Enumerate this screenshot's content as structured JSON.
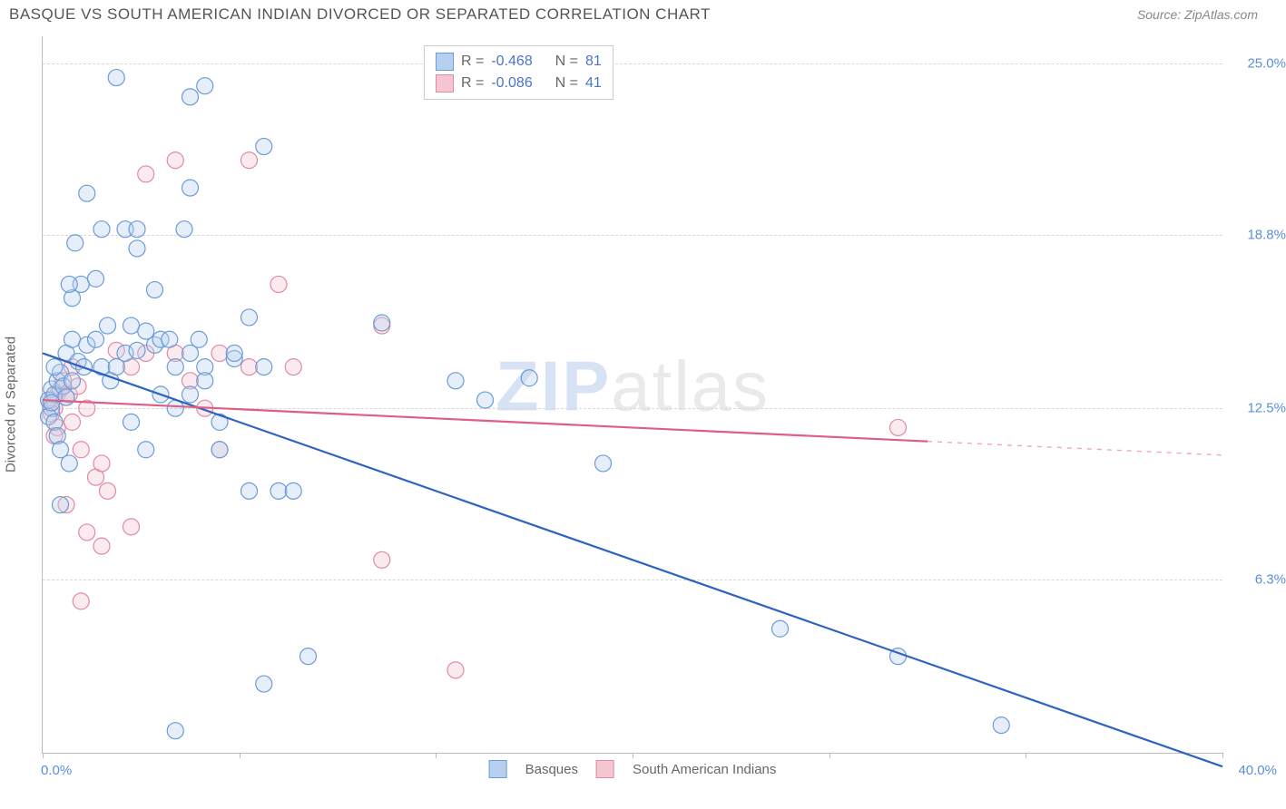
{
  "header": {
    "title": "BASQUE VS SOUTH AMERICAN INDIAN DIVORCED OR SEPARATED CORRELATION CHART",
    "source": "Source: ZipAtlas.com"
  },
  "watermark": {
    "part1": "ZIP",
    "part2": "atlas"
  },
  "chart": {
    "type": "scatter",
    "y_axis_title": "Divorced or Separated",
    "xlim": [
      0,
      40
    ],
    "ylim": [
      0,
      26
    ],
    "x_tick_positions": [
      0,
      6.67,
      13.33,
      20,
      26.67,
      33.33,
      40
    ],
    "x_tick_labels_shown": {
      "0": "0.0%",
      "40": "40.0%"
    },
    "y_grid_positions": [
      6.3,
      12.5,
      18.8,
      25.0
    ],
    "y_tick_labels": [
      "6.3%",
      "12.5%",
      "18.8%",
      "25.0%"
    ],
    "background_color": "#ffffff",
    "grid_color": "#d8d8d8",
    "axis_color": "#bbbbbb",
    "tick_label_color": "#5b8fd6",
    "marker_radius": 9,
    "marker_stroke_width": 1.2,
    "marker_fill_opacity": 0.35,
    "line_width": 2.2,
    "series": [
      {
        "name": "Basques",
        "label": "Basques",
        "fill": "#b8d0ef",
        "stroke": "#6b9bd8",
        "line_color": "#2e63c0",
        "R": "-0.468",
        "N": "81",
        "trend": {
          "x1": 0,
          "y1": 14.5,
          "x2": 40,
          "y2": -0.5,
          "solid_until_x": 40
        },
        "points": [
          [
            0.3,
            13.2
          ],
          [
            0.2,
            12.8
          ],
          [
            0.4,
            13.0
          ],
          [
            0.3,
            12.5
          ],
          [
            0.5,
            13.5
          ],
          [
            0.2,
            12.2
          ],
          [
            0.6,
            13.8
          ],
          [
            0.4,
            12.0
          ],
          [
            0.8,
            14.5
          ],
          [
            0.5,
            11.5
          ],
          [
            1.0,
            15.0
          ],
          [
            0.6,
            11.0
          ],
          [
            0.4,
            14.0
          ],
          [
            0.3,
            12.7
          ],
          [
            0.7,
            13.3
          ],
          [
            0.8,
            12.9
          ],
          [
            1.0,
            13.5
          ],
          [
            1.2,
            14.2
          ],
          [
            1.5,
            14.8
          ],
          [
            1.0,
            16.5
          ],
          [
            1.3,
            17.0
          ],
          [
            1.8,
            17.2
          ],
          [
            0.9,
            17.0
          ],
          [
            1.1,
            18.5
          ],
          [
            2.0,
            19.0
          ],
          [
            2.8,
            19.0
          ],
          [
            3.2,
            19.0
          ],
          [
            3.2,
            18.3
          ],
          [
            1.5,
            20.3
          ],
          [
            2.0,
            14.0
          ],
          [
            2.5,
            14.0
          ],
          [
            2.3,
            13.5
          ],
          [
            2.8,
            14.5
          ],
          [
            3.0,
            15.5
          ],
          [
            3.2,
            14.6
          ],
          [
            3.5,
            15.3
          ],
          [
            3.8,
            14.8
          ],
          [
            4.0,
            15.0
          ],
          [
            4.3,
            15.0
          ],
          [
            4.5,
            14.0
          ],
          [
            5.0,
            14.5
          ],
          [
            5.3,
            15.0
          ],
          [
            5.5,
            14.0
          ],
          [
            6.0,
            12.0
          ],
          [
            4.0,
            13.0
          ],
          [
            4.5,
            12.5
          ],
          [
            5.0,
            13.0
          ],
          [
            5.5,
            13.5
          ],
          [
            6.5,
            14.3
          ],
          [
            7.0,
            15.8
          ],
          [
            7.5,
            14.0
          ],
          [
            2.5,
            24.5
          ],
          [
            5.0,
            23.8
          ],
          [
            5.5,
            24.2
          ],
          [
            7.5,
            22.0
          ],
          [
            5.0,
            20.5
          ],
          [
            3.0,
            12.0
          ],
          [
            3.5,
            11.0
          ],
          [
            6.0,
            11.0
          ],
          [
            7.0,
            9.5
          ],
          [
            8.0,
            9.5
          ],
          [
            8.5,
            9.5
          ],
          [
            9.0,
            3.5
          ],
          [
            7.5,
            2.5
          ],
          [
            14.0,
            13.5
          ],
          [
            15.0,
            12.8
          ],
          [
            16.5,
            13.6
          ],
          [
            11.5,
            15.6
          ],
          [
            19.0,
            10.5
          ],
          [
            25.0,
            4.5
          ],
          [
            29.0,
            3.5
          ],
          [
            32.5,
            1.0
          ],
          [
            4.5,
            0.8
          ],
          [
            3.8,
            16.8
          ],
          [
            6.5,
            14.5
          ],
          [
            4.8,
            19.0
          ],
          [
            2.2,
            15.5
          ],
          [
            1.8,
            15.0
          ],
          [
            1.4,
            14.0
          ],
          [
            0.9,
            10.5
          ],
          [
            0.6,
            9.0
          ]
        ]
      },
      {
        "name": "South American Indians",
        "label": "South American Indians",
        "fill": "#f4c6d2",
        "stroke": "#e08aa4",
        "line_color": "#de5e84",
        "R": "-0.086",
        "N": "41",
        "trend": {
          "x1": 0,
          "y1": 12.8,
          "x2": 40,
          "y2": 10.8,
          "solid_until_x": 30
        },
        "points": [
          [
            0.3,
            12.8
          ],
          [
            0.5,
            13.0
          ],
          [
            0.4,
            12.5
          ],
          [
            0.6,
            13.2
          ],
          [
            0.8,
            12.9
          ],
          [
            0.3,
            12.3
          ],
          [
            0.5,
            11.8
          ],
          [
            0.7,
            13.5
          ],
          [
            0.9,
            13.0
          ],
          [
            1.0,
            14.0
          ],
          [
            1.2,
            13.3
          ],
          [
            1.5,
            12.5
          ],
          [
            1.0,
            12.0
          ],
          [
            1.3,
            11.0
          ],
          [
            1.8,
            10.0
          ],
          [
            2.0,
            10.5
          ],
          [
            2.2,
            9.5
          ],
          [
            1.5,
            8.0
          ],
          [
            2.5,
            14.6
          ],
          [
            3.0,
            14.0
          ],
          [
            3.5,
            14.5
          ],
          [
            4.5,
            14.5
          ],
          [
            5.0,
            13.5
          ],
          [
            6.0,
            14.5
          ],
          [
            7.0,
            14.0
          ],
          [
            8.0,
            17.0
          ],
          [
            8.5,
            14.0
          ],
          [
            3.5,
            21.0
          ],
          [
            4.5,
            21.5
          ],
          [
            7.0,
            21.5
          ],
          [
            5.5,
            12.5
          ],
          [
            6.0,
            11.0
          ],
          [
            2.0,
            7.5
          ],
          [
            1.3,
            5.5
          ],
          [
            3.0,
            8.2
          ],
          [
            11.5,
            15.5
          ],
          [
            11.5,
            7.0
          ],
          [
            14.0,
            3.0
          ],
          [
            29.0,
            11.8
          ],
          [
            0.4,
            11.5
          ],
          [
            0.8,
            9.0
          ]
        ]
      }
    ],
    "legend_bottom": [
      {
        "label": "Basques",
        "fill": "#b8d0ef",
        "stroke": "#6b9bd8"
      },
      {
        "label": "South American Indians",
        "fill": "#f4c6d2",
        "stroke": "#e08aa4"
      }
    ],
    "legend_top_labels": {
      "R_prefix": "R =",
      "N_prefix": "N ="
    }
  }
}
